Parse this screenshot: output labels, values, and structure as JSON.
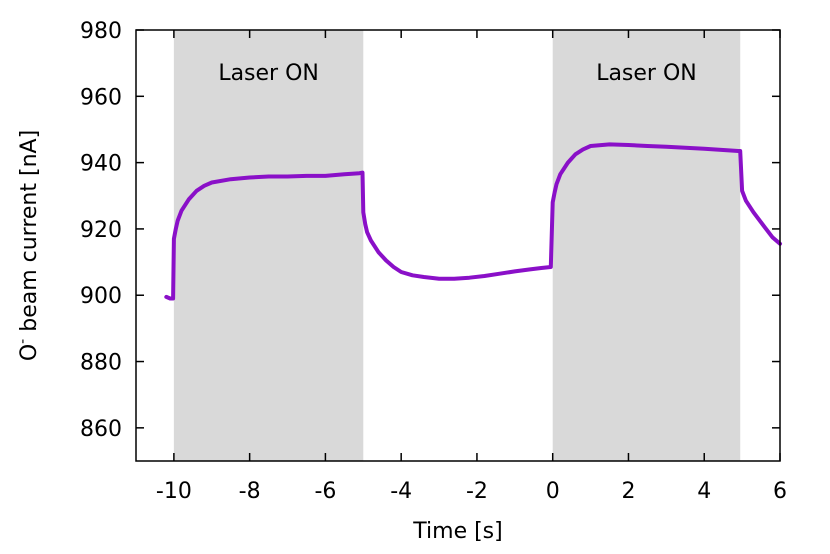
{
  "chart_data": {
    "type": "line",
    "xlabel": "Time [s]",
    "ylabel": {
      "prefix": "O",
      "superscript": "-",
      "suffix": " beam current [nA]"
    },
    "xlim": [
      -11,
      6
    ],
    "ylim": [
      850,
      980
    ],
    "x_ticks": [
      -10,
      -8,
      -6,
      -4,
      -2,
      0,
      2,
      4,
      6
    ],
    "y_ticks": [
      860,
      880,
      900,
      920,
      940,
      960,
      980
    ],
    "grid": false,
    "legend": "none",
    "line_color": "#8a10c8",
    "band_color": "#d9d9d9",
    "shaded_regions": [
      {
        "x0": -10,
        "x1": -5,
        "label": "Laser ON"
      },
      {
        "x0": 0,
        "x1": 4.95,
        "label": "Laser ON"
      }
    ],
    "series": [
      {
        "x": [
          -10.2,
          -10.1,
          -10.02,
          -10.0,
          -9.95,
          -9.9,
          -9.8,
          -9.6,
          -9.4,
          -9.2,
          -9.0,
          -8.5,
          -8.0,
          -7.5,
          -7.0,
          -6.5,
          -6.0,
          -5.5,
          -5.1,
          -5.02,
          -5.0,
          -4.95,
          -4.9,
          -4.8,
          -4.6,
          -4.4,
          -4.2,
          -4.0,
          -3.7,
          -3.4,
          -3.0,
          -2.6,
          -2.2,
          -1.8,
          -1.4,
          -1.0,
          -0.6,
          -0.3,
          -0.05,
          0.0,
          0.05,
          0.1,
          0.2,
          0.4,
          0.6,
          0.8,
          1.0,
          1.5,
          2.0,
          2.5,
          3.0,
          3.5,
          4.0,
          4.5,
          4.9,
          4.95,
          5.0,
          5.1,
          5.3,
          5.6,
          5.8,
          6.0
        ],
        "y": [
          899.5,
          899.0,
          899.0,
          917.0,
          920.0,
          922.5,
          925.5,
          929.0,
          931.5,
          933.0,
          934.0,
          935.0,
          935.5,
          935.8,
          935.8,
          936.0,
          936.0,
          936.5,
          936.8,
          937.0,
          925.0,
          921.5,
          919.0,
          916.5,
          913.0,
          910.5,
          908.5,
          907.0,
          906.0,
          905.5,
          905.0,
          905.0,
          905.3,
          905.8,
          906.5,
          907.2,
          907.8,
          908.2,
          908.5,
          928.0,
          931.0,
          933.5,
          936.5,
          940.0,
          942.5,
          944.0,
          945.0,
          945.5,
          945.3,
          945.0,
          944.8,
          944.5,
          944.2,
          943.8,
          943.5,
          943.5,
          931.5,
          928.5,
          925.0,
          920.5,
          917.5,
          915.5
        ]
      }
    ]
  }
}
